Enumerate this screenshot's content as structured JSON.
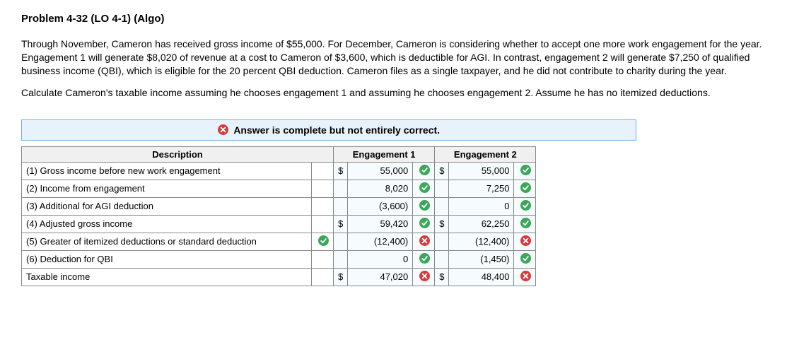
{
  "title": "Problem 4-32 (LO 4-1) (Algo)",
  "para1": "Through November, Cameron has received gross income of $55,000. For December, Cameron is considering whether to accept one more work engagement for the year. Engagement 1 will generate $8,020 of revenue at a cost to Cameron of $3,600, which is deductible for AGI. In contrast, engagement 2 will generate $7,250 of qualified business income (QBI), which is eligible for the 20 percent QBI deduction. Cameron files as a single taxpayer, and he did not contribute to charity during the year.",
  "para2": "Calculate Cameron's taxable income assuming he chooses engagement 1 and assuming he chooses engagement 2. Assume he has no itemized deductions.",
  "banner": "Answer is complete but not entirely correct.",
  "headers": {
    "desc": "Description",
    "e1": "Engagement 1",
    "e2": "Engagement 2"
  },
  "colors": {
    "correct_bg": "#3ba758",
    "wrong_bg": "#d83b3b",
    "banner_bg": "#e8f2fb",
    "banner_border": "#7bb1e0",
    "input_bg": "#f6fbfd"
  },
  "rows": [
    {
      "desc": "(1) Gross income before new work engagement",
      "descMark": null,
      "e1": {
        "cur": "$",
        "val": "55,000",
        "mark": "ok"
      },
      "e2": {
        "cur": "$",
        "val": "55,000",
        "mark": "ok"
      }
    },
    {
      "desc": "(2) Income from engagement",
      "descMark": null,
      "e1": {
        "cur": "",
        "val": "8,020",
        "mark": "ok"
      },
      "e2": {
        "cur": "",
        "val": "7,250",
        "mark": "ok"
      }
    },
    {
      "desc": "(3) Additional for AGI deduction",
      "descMark": null,
      "e1": {
        "cur": "",
        "val": "(3,600)",
        "mark": "ok"
      },
      "e2": {
        "cur": "",
        "val": "0",
        "mark": "ok"
      }
    },
    {
      "desc": "(4) Adjusted gross income",
      "descMark": null,
      "e1": {
        "cur": "$",
        "val": "59,420",
        "mark": "ok"
      },
      "e2": {
        "cur": "$",
        "val": "62,250",
        "mark": "ok"
      }
    },
    {
      "desc": "(5) Greater of itemized deductions or standard deduction",
      "descMark": "ok",
      "e1": {
        "cur": "",
        "val": "(12,400)",
        "mark": "bad"
      },
      "e2": {
        "cur": "",
        "val": "(12,400)",
        "mark": "bad"
      }
    },
    {
      "desc": "(6) Deduction for QBI",
      "descMark": null,
      "e1": {
        "cur": "",
        "val": "0",
        "mark": "ok"
      },
      "e2": {
        "cur": "",
        "val": "(1,450)",
        "mark": "ok"
      }
    },
    {
      "desc": "Taxable income",
      "descMark": null,
      "e1": {
        "cur": "$",
        "val": "47,020",
        "mark": "bad"
      },
      "e2": {
        "cur": "$",
        "val": "48,400",
        "mark": "bad"
      }
    }
  ]
}
